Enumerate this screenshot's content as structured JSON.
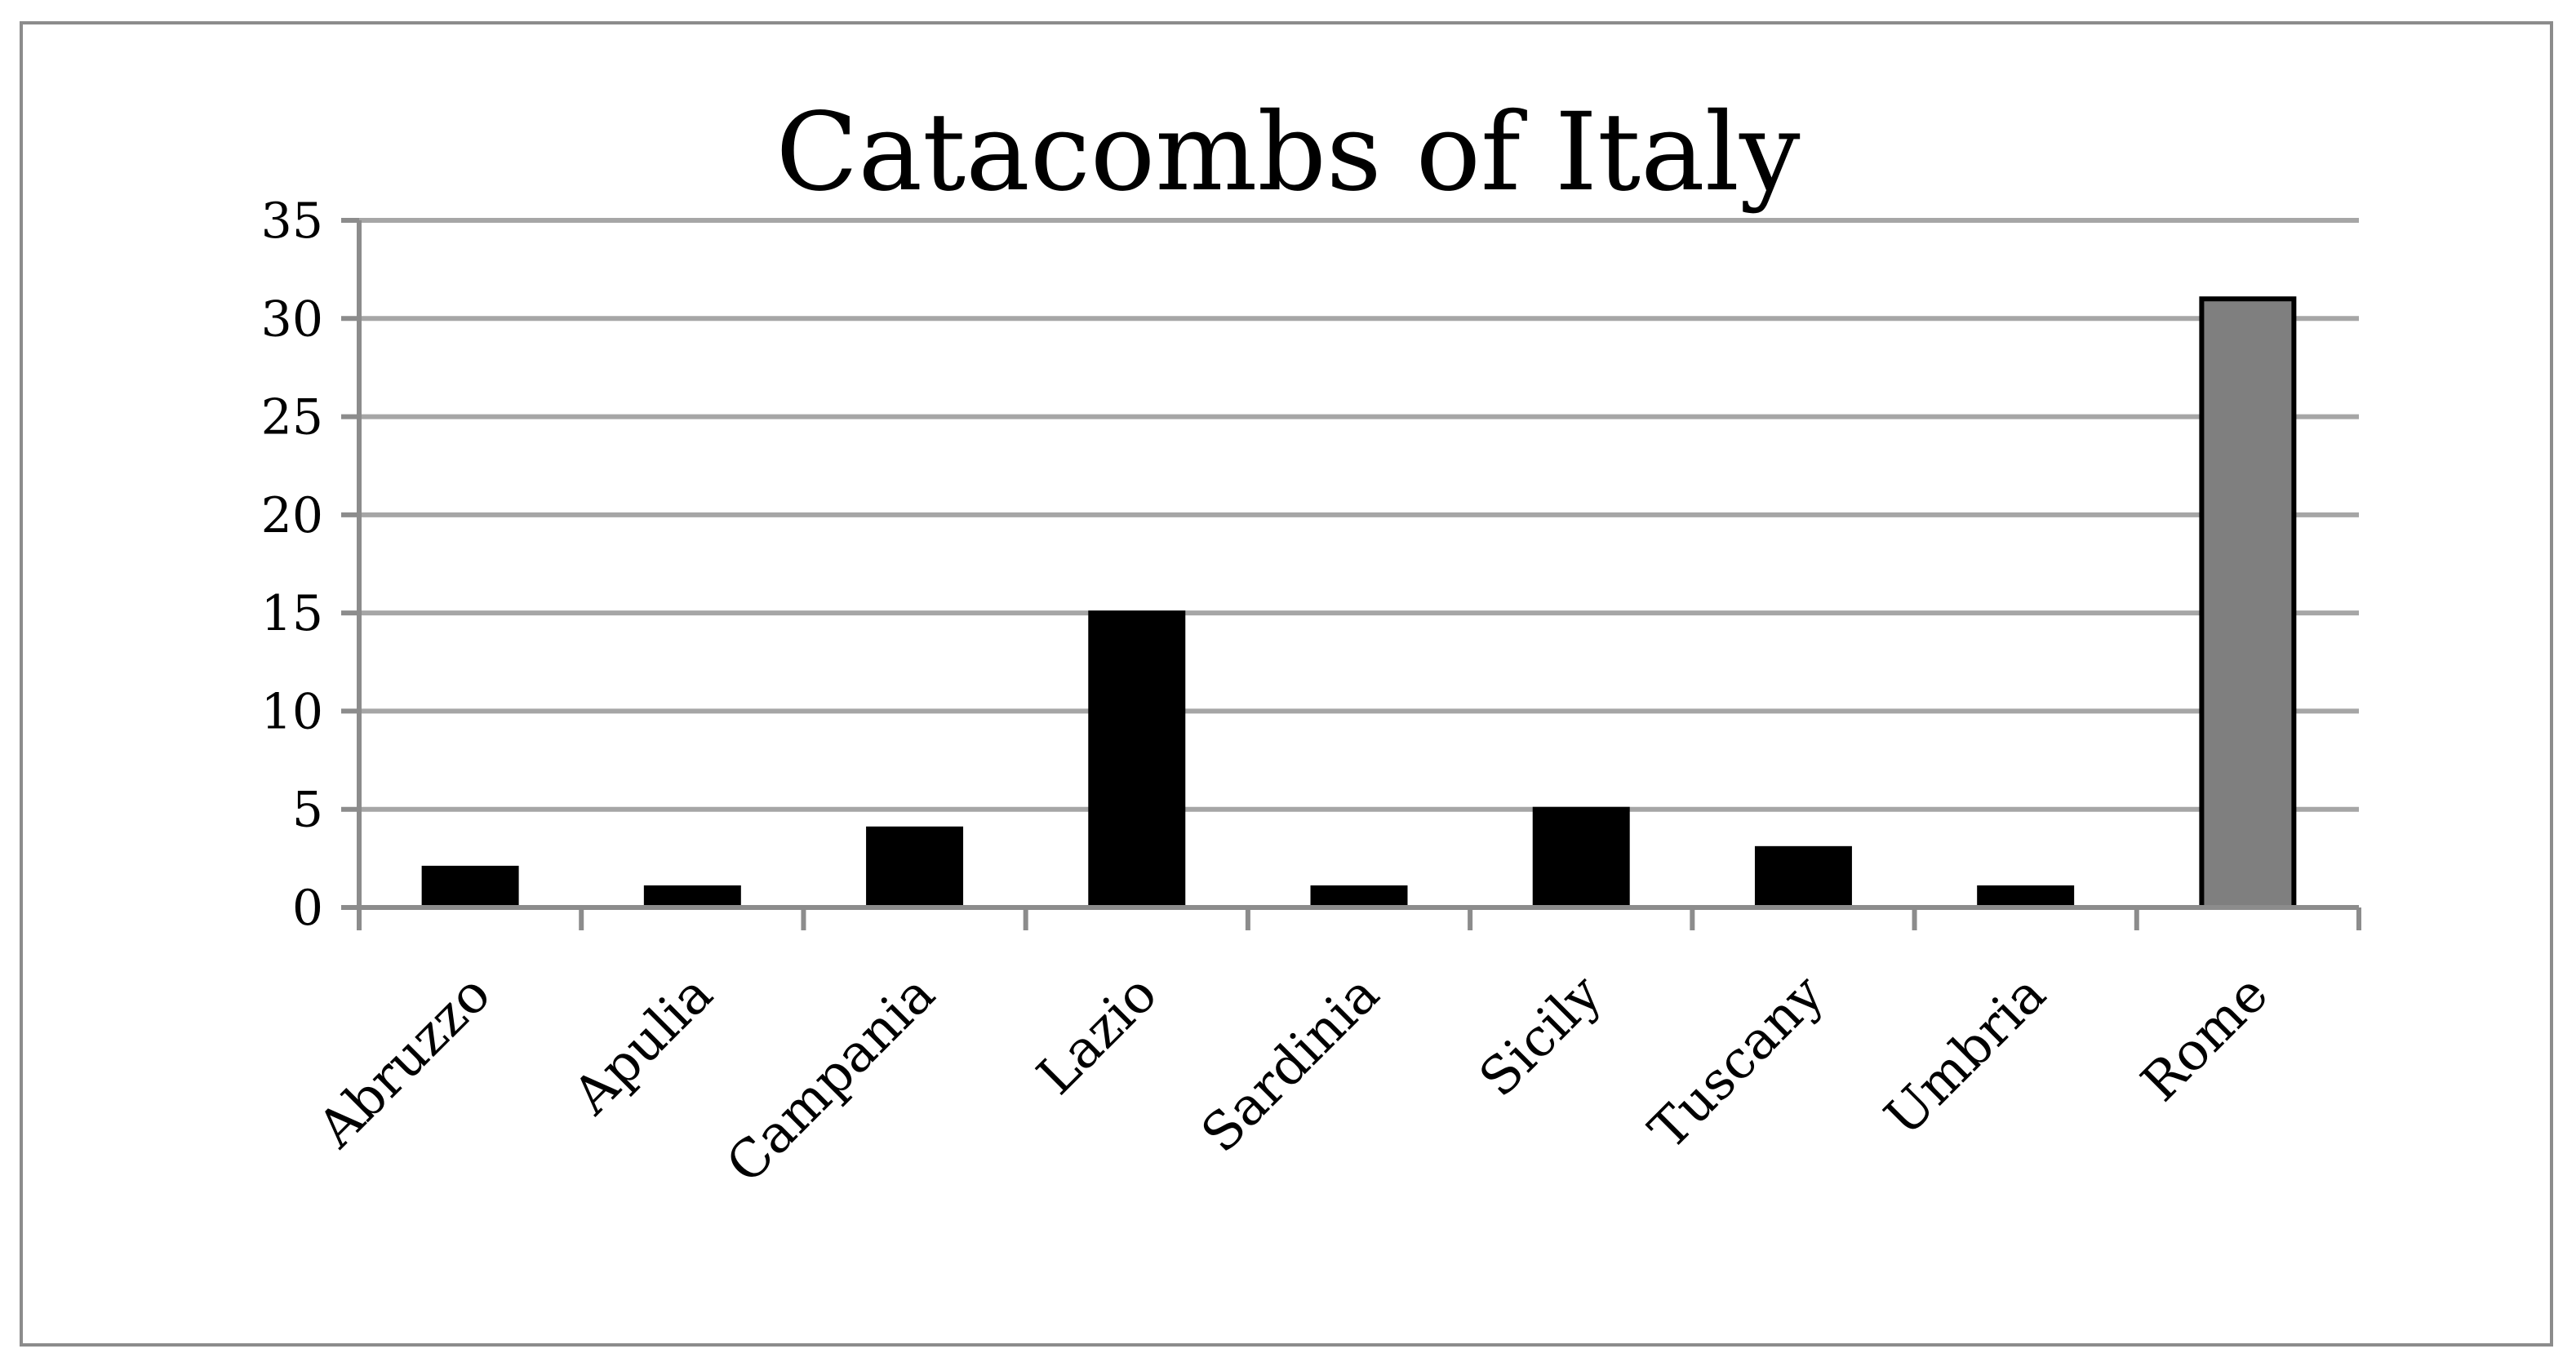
{
  "chart_data": {
    "type": "bar",
    "title": "Catacombs of Italy",
    "categories": [
      "Abruzzo",
      "Apulia",
      "Campania",
      "Lazio",
      "Sardinia",
      "Sicily",
      "Tuscany",
      "Umbria",
      "Rome"
    ],
    "values": [
      2,
      1,
      4,
      15,
      1,
      5,
      3,
      1,
      31
    ],
    "bar_colors": [
      "#000000",
      "#000000",
      "#000000",
      "#000000",
      "#000000",
      "#000000",
      "#000000",
      "#000000",
      "#7f7f7f"
    ],
    "ylim": [
      0,
      35
    ],
    "yticks": [
      0,
      5,
      10,
      15,
      20,
      25,
      30,
      35
    ],
    "xlabel": "",
    "ylabel": "",
    "grid": true,
    "legend": "none"
  }
}
